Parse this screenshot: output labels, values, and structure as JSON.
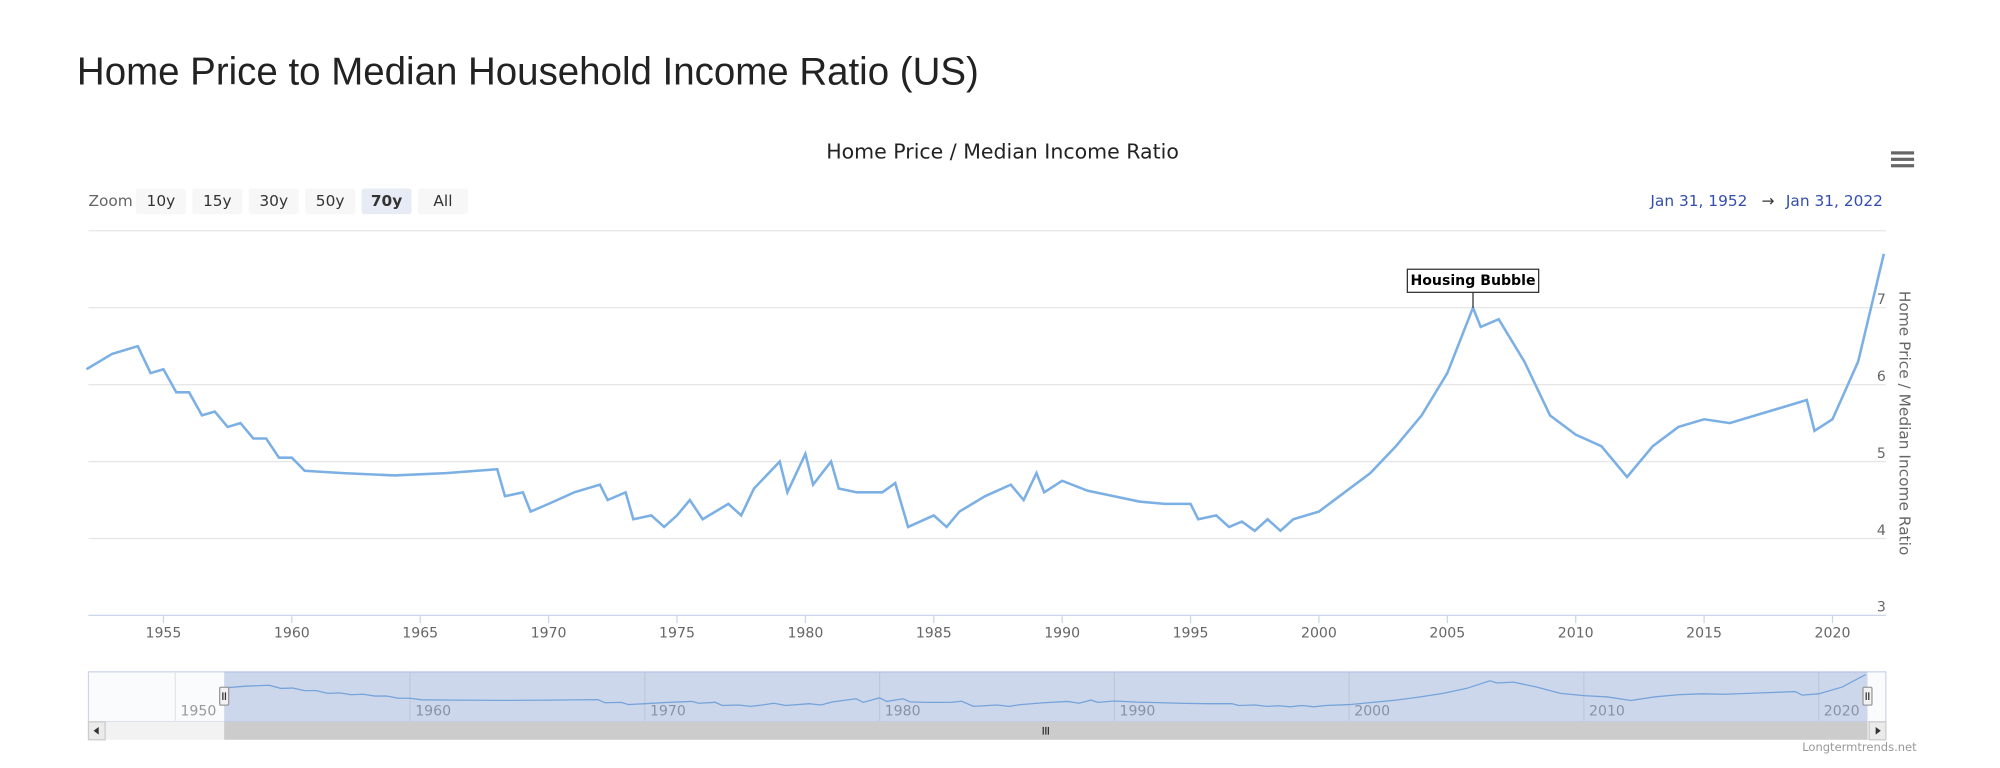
{
  "page_title": "Home Price to Median Household Income Ratio (US)",
  "chart_data": {
    "type": "line",
    "title": "Home Price / Median Income Ratio",
    "y_axis_title": "Home Price / Median Income Ratio",
    "color": "#7cb0e4",
    "x": [
      1952,
      1953,
      1954,
      1954.5,
      1955,
      1955.5,
      1956,
      1956.5,
      1957,
      1957.5,
      1958,
      1958.5,
      1959,
      1959.5,
      1960,
      1960.5,
      1962,
      1964,
      1966,
      1968,
      1968.3,
      1969,
      1969.3,
      1970,
      1971,
      1972,
      1972.3,
      1973,
      1973.3,
      1974,
      1974.5,
      1975,
      1975.5,
      1976,
      1977,
      1977.5,
      1978,
      1979,
      1979.3,
      1980,
      1980.3,
      1981,
      1981.3,
      1982,
      1983,
      1983.5,
      1984,
      1985,
      1985.5,
      1986,
      1987,
      1988,
      1988.5,
      1989,
      1989.3,
      1990,
      1991,
      1992,
      1993,
      1994,
      1995,
      1995.3,
      1996,
      1996.5,
      1997,
      1997.5,
      1998,
      1998.5,
      1999,
      2000,
      2001,
      2002,
      2003,
      2004,
      2005,
      2006,
      2006.3,
      2007,
      2008,
      2009,
      2010,
      2011,
      2012,
      2013,
      2014,
      2015,
      2016,
      2017,
      2018,
      2019,
      2019.3,
      2020,
      2021,
      2022
    ],
    "values": [
      6.2,
      6.4,
      6.5,
      6.15,
      6.2,
      5.9,
      5.9,
      5.6,
      5.65,
      5.45,
      5.5,
      5.3,
      5.3,
      5.05,
      5.05,
      4.88,
      4.85,
      4.82,
      4.85,
      4.9,
      4.55,
      4.6,
      4.35,
      4.45,
      4.6,
      4.7,
      4.5,
      4.6,
      4.25,
      4.3,
      4.15,
      4.3,
      4.5,
      4.25,
      4.45,
      4.3,
      4.65,
      5.0,
      4.6,
      5.1,
      4.7,
      5.0,
      4.65,
      4.6,
      4.6,
      4.72,
      4.15,
      4.3,
      4.15,
      4.35,
      4.55,
      4.7,
      4.5,
      4.85,
      4.6,
      4.75,
      4.62,
      4.55,
      4.48,
      4.45,
      4.45,
      4.25,
      4.3,
      4.15,
      4.22,
      4.1,
      4.25,
      4.1,
      4.25,
      4.35,
      4.6,
      4.85,
      5.2,
      5.6,
      6.15,
      7.0,
      6.75,
      6.85,
      6.3,
      5.6,
      5.35,
      5.2,
      4.8,
      5.2,
      5.45,
      5.55,
      5.5,
      5.6,
      5.7,
      5.8,
      5.4,
      5.55,
      6.3,
      7.7
    ],
    "xlim": [
      1952.08,
      2022.08
    ],
    "xticks": [
      1955,
      1960,
      1965,
      1970,
      1975,
      1980,
      1985,
      1990,
      1995,
      2000,
      2005,
      2010,
      2015,
      2020
    ],
    "ylim": [
      3,
      8
    ],
    "yticks": [
      3,
      4,
      5,
      6,
      7
    ],
    "grid": true,
    "annotation": {
      "text": "Housing Bubble",
      "x": 2006,
      "y": 7.0
    },
    "range_selector": {
      "label": "Zoom",
      "buttons": [
        "10y",
        "15y",
        "30y",
        "50y",
        "70y",
        "All"
      ],
      "selected": "70y"
    },
    "date_range": {
      "from": "Jan 31, 1952",
      "arrow": "→",
      "to": "Jan 31, 2022"
    },
    "navigator": {
      "xlim": [
        1946.3,
        2022.1
      ],
      "xticks": [
        1950,
        1960,
        1970,
        1980,
        1990,
        2000,
        2010,
        2020
      ]
    },
    "credit": "Longtermtrends.net"
  }
}
